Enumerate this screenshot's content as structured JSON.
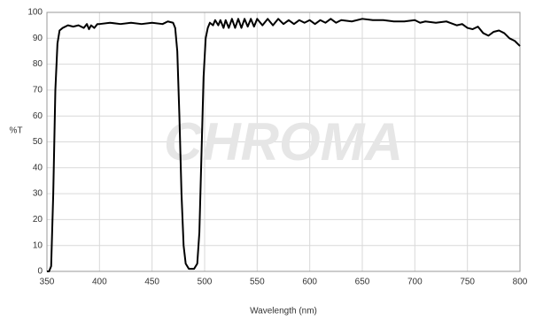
{
  "chart_data": {
    "type": "line",
    "watermark": "CHROMA",
    "x_label": "Wavelength (nm)",
    "y_label": "%T",
    "xlim": [
      350,
      800
    ],
    "ylim": [
      0,
      100
    ],
    "xticks": [
      350,
      400,
      450,
      500,
      550,
      600,
      650,
      700,
      750,
      800
    ],
    "yticks": [
      0,
      10,
      20,
      30,
      40,
      50,
      60,
      70,
      80,
      90,
      100
    ],
    "grid": true,
    "series": [
      {
        "color": "#000000",
        "x": [
          350,
          352,
          354,
          356,
          358,
          360,
          362,
          365,
          370,
          375,
          380,
          385,
          388,
          390,
          392,
          395,
          398,
          400,
          410,
          420,
          430,
          440,
          450,
          460,
          465,
          470,
          472,
          474,
          476,
          478,
          480,
          482,
          485,
          490,
          493,
          495,
          497,
          499,
          501,
          503,
          505,
          508,
          510,
          513,
          515,
          518,
          520,
          523,
          526,
          529,
          532,
          535,
          538,
          541,
          544,
          547,
          550,
          555,
          560,
          565,
          570,
          575,
          580,
          585,
          590,
          595,
          600,
          605,
          610,
          615,
          620,
          625,
          630,
          640,
          650,
          660,
          670,
          680,
          690,
          700,
          705,
          710,
          720,
          730,
          740,
          745,
          750,
          755,
          760,
          765,
          770,
          775,
          780,
          785,
          790,
          795,
          800
        ],
        "values": [
          0,
          0,
          2,
          30,
          70,
          88,
          93,
          94,
          95,
          94.5,
          95,
          94,
          95.5,
          93.5,
          95,
          94,
          95.5,
          95.5,
          96,
          95.5,
          96,
          95.5,
          96,
          95.5,
          96.5,
          96,
          94,
          85,
          60,
          30,
          10,
          3,
          1,
          1,
          3,
          15,
          45,
          75,
          90,
          94,
          96,
          95,
          97,
          95,
          97,
          94,
          97,
          94,
          97.5,
          94,
          97.5,
          94,
          97.5,
          94.5,
          97.5,
          94.5,
          97.5,
          95,
          97.5,
          95,
          97.5,
          95.5,
          97,
          95.5,
          97,
          96,
          97,
          95.5,
          97,
          96,
          97.5,
          96,
          97,
          96.5,
          97.5,
          97,
          97,
          96.5,
          96.5,
          97,
          96,
          96.5,
          96,
          96.5,
          95,
          95.5,
          94,
          93.5,
          94.5,
          92,
          91,
          92.5,
          93,
          92,
          90,
          89,
          87
        ]
      }
    ]
  }
}
